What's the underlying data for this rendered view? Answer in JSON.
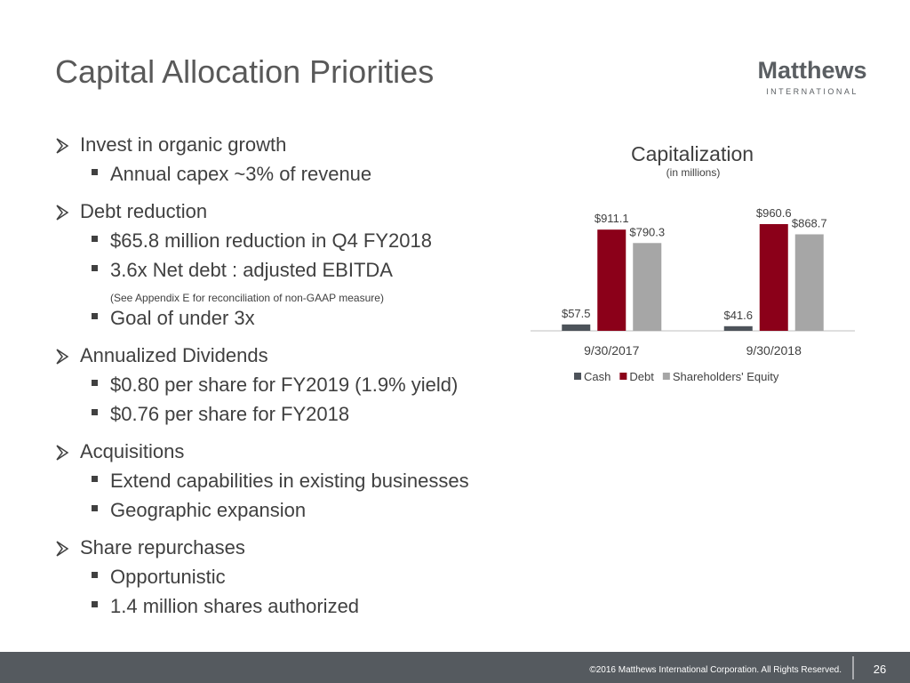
{
  "header": {
    "title": "Capital Allocation Priorities",
    "logo": "Matthews",
    "logo_sub": "INTERNATIONAL"
  },
  "bullets": [
    {
      "text": "Invest in organic growth",
      "items": [
        "Annual capex ~3% of revenue"
      ]
    },
    {
      "text": "Debt reduction",
      "items": [
        "$65.8 million reduction in Q4 FY2018",
        "3.6x Net debt : adjusted EBITDA",
        "Goal of under 3x"
      ],
      "note": "(See Appendix E for reconciliation of non-GAAP measure)"
    },
    {
      "text": "Annualized Dividends",
      "items": [
        "$0.80 per share for FY2019 (1.9% yield)",
        "$0.76 per share for FY2018"
      ]
    },
    {
      "text": "Acquisitions",
      "items": [
        "Extend capabilities in existing businesses",
        "Geographic expansion"
      ]
    },
    {
      "text": "Share repurchases",
      "items": [
        "Opportunistic",
        "1.4 million shares authorized"
      ]
    }
  ],
  "chart_data": {
    "type": "bar",
    "title": "Capitalization",
    "subtitle": "(in millions)",
    "categories": [
      "9/30/2017",
      "9/30/2018"
    ],
    "series": [
      {
        "name": "Cash",
        "color": "#4d535a",
        "values": [
          57.5,
          41.6
        ],
        "value_labels": [
          "$57.5",
          "$41.6"
        ]
      },
      {
        "name": "Debt",
        "color": "#8b0019",
        "values": [
          911.1,
          960.6
        ],
        "value_labels": [
          "$911.1",
          "$960.6"
        ]
      },
      {
        "name": "Shareholders' Equity",
        "color": "#a6a6a6",
        "values": [
          790.3,
          868.7
        ],
        "value_labels": [
          "$790.3",
          "$868.7"
        ]
      }
    ],
    "legend": "bottom"
  },
  "footer": {
    "copyright": "©2016 Matthews International Corporation. All Rights Reserved.",
    "page": "26"
  }
}
